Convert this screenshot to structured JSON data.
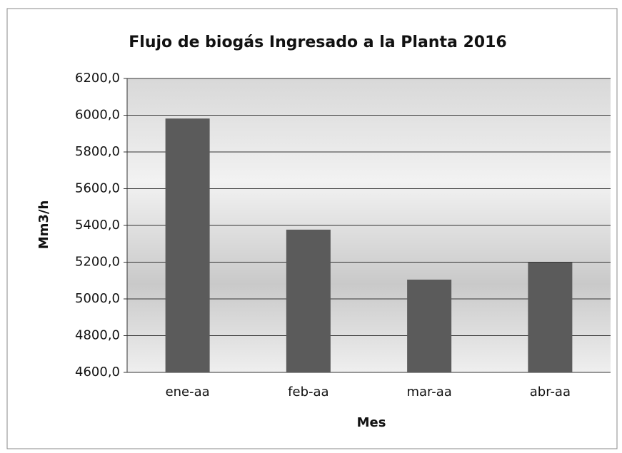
{
  "chart_data": {
    "type": "bar",
    "title": "Flujo de biogás Ingresado a la Planta 2016",
    "x_label": "Mes",
    "y_label": "Mm3/h",
    "categories": [
      "ene-aa",
      "feb-aa",
      "mar-aa",
      "abr-aa"
    ],
    "values": [
      5982,
      5377,
      5105,
      5198
    ],
    "color": "#5b5b5b",
    "ylim": [
      4600,
      6200
    ],
    "yticks": [
      {
        "value": 4600,
        "label": "4600,0"
      },
      {
        "value": 4800,
        "label": "4800,0"
      },
      {
        "value": 5000,
        "label": "5000,0"
      },
      {
        "value": 5200,
        "label": "5200,0"
      },
      {
        "value": 5400,
        "label": "5400,0"
      },
      {
        "value": 5600,
        "label": "5600,0"
      },
      {
        "value": 5800,
        "label": "5800,0"
      },
      {
        "value": 6000,
        "label": "6000,0"
      },
      {
        "value": 6200,
        "label": "6200,0"
      }
    ],
    "grid": true
  }
}
